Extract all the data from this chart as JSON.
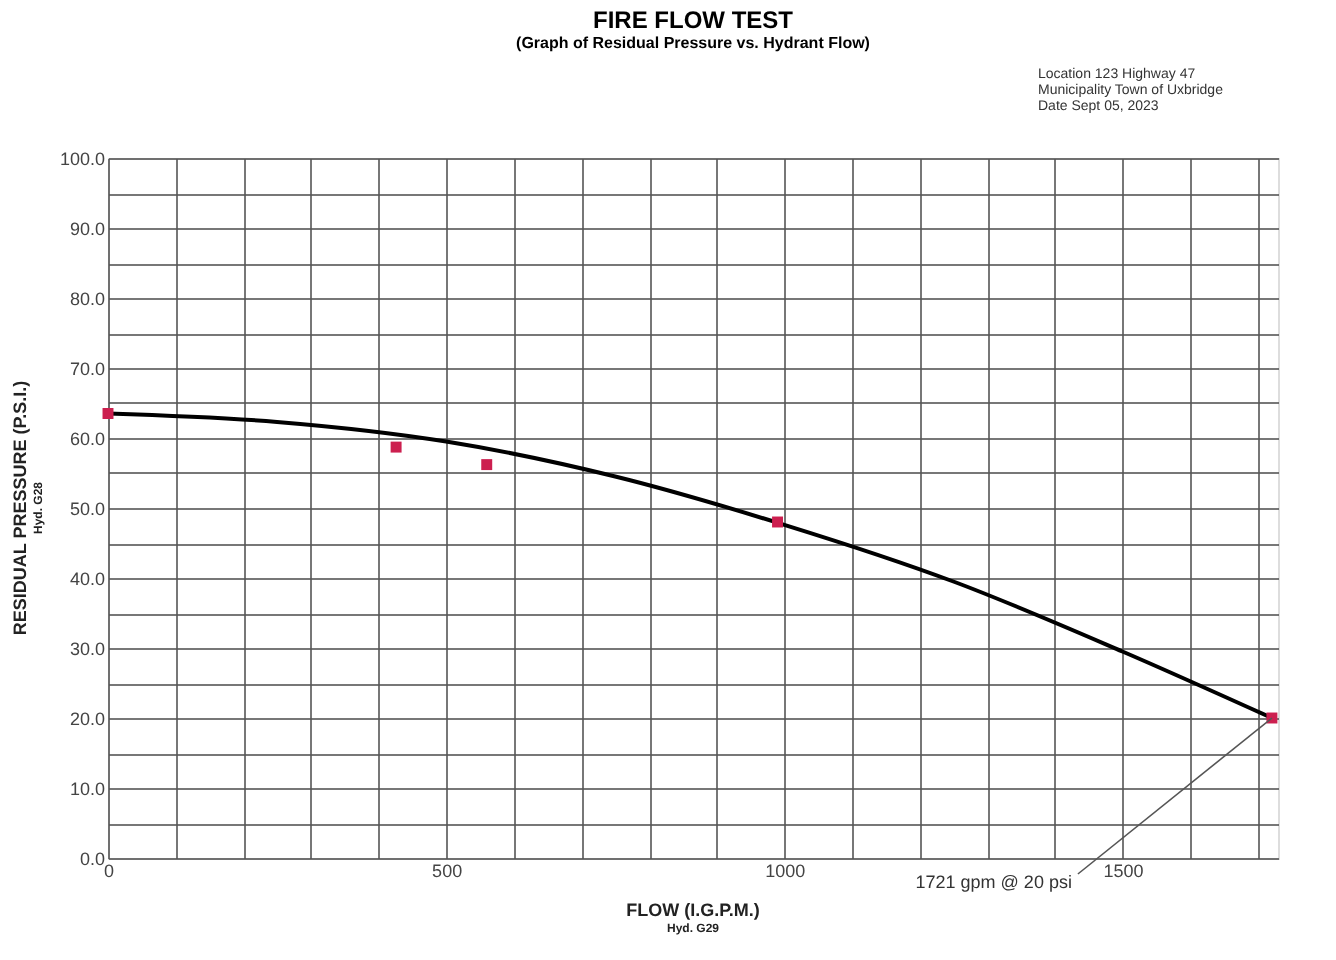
{
  "chart_data": {
    "type": "scatter",
    "title": "FIRE FLOW TEST",
    "subtitle": "(Graph of Residual Pressure vs. Hydrant Flow)",
    "xlabel": "FLOW (I.G.P.M.)",
    "ylabel": "RESIDUAL PRESSURE (P.S.I.)",
    "annotations": [
      "Hyd. G28",
      "Hyd. G29",
      "Location     123 Highway 47",
      "Municipality  Town of Uxbridge",
      "Date            Sept 05, 2023",
      {
        "text": "1721 gpm @ 20 psi",
        "x": 1721,
        "y": 20
      }
    ],
    "xlim": [
      0,
      1730
    ],
    "ylim": [
      0,
      100
    ],
    "xticks": [
      0,
      {
        "value": 100,
        "label": null
      },
      {
        "value": 200,
        "label": null
      },
      {
        "value": 300,
        "label": null
      },
      {
        "value": 400,
        "label": null
      },
      500,
      {
        "value": 600,
        "label": null
      },
      {
        "value": 700,
        "label": null
      },
      {
        "value": 800,
        "label": null
      },
      {
        "value": 900,
        "label": null
      },
      1000,
      {
        "value": 1100,
        "label": null
      },
      {
        "value": 1200,
        "label": null
      },
      {
        "value": 1300,
        "label": null
      },
      {
        "value": 1400,
        "label": null
      },
      1500,
      {
        "value": 1600,
        "label": null
      },
      {
        "value": 1700,
        "label": null
      }
    ],
    "yticks": [
      {
        "value": 0,
        "label": "0.0"
      },
      {
        "value": 5,
        "label": null
      },
      {
        "value": 10,
        "label": "10.0"
      },
      {
        "value": 15,
        "label": null
      },
      {
        "value": 20,
        "label": "20.0"
      },
      {
        "value": 25,
        "label": null
      },
      {
        "value": 30,
        "label": "30.0"
      },
      {
        "value": 35,
        "label": null
      },
      {
        "value": 40,
        "label": "40.0"
      },
      {
        "value": 45,
        "label": null
      },
      {
        "value": 50,
        "label": "50.0"
      },
      {
        "value": 55,
        "label": null
      },
      {
        "value": 60,
        "label": "60.0"
      },
      {
        "value": 65,
        "label": null
      },
      {
        "value": 70,
        "label": "70.0"
      },
      {
        "value": 75,
        "label": null
      },
      {
        "value": 80,
        "label": "80.0"
      },
      {
        "value": 85,
        "label": null
      },
      {
        "value": 90,
        "label": "90.0"
      },
      {
        "value": 95,
        "label": null
      },
      {
        "value": 100,
        "label": "100.0"
      }
    ],
    "grid": true,
    "marker": "square",
    "series": [
      {
        "type": "line",
        "marker": "none",
        "color": "#000000",
        "x": [
          0,
          250,
          500,
          750,
          1000,
          1250,
          1500,
          1721
        ],
        "values": [
          63.5,
          62.3,
          59.5,
          54.5,
          47.6,
          39.5,
          29.5,
          20
        ]
      },
      {
        "type": "scatter",
        "color": "#cc1f4f",
        "x": [
          0,
          426,
          560,
          990,
          1721
        ],
        "values": [
          63.5,
          58.7,
          56.2,
          48,
          20
        ]
      }
    ]
  }
}
